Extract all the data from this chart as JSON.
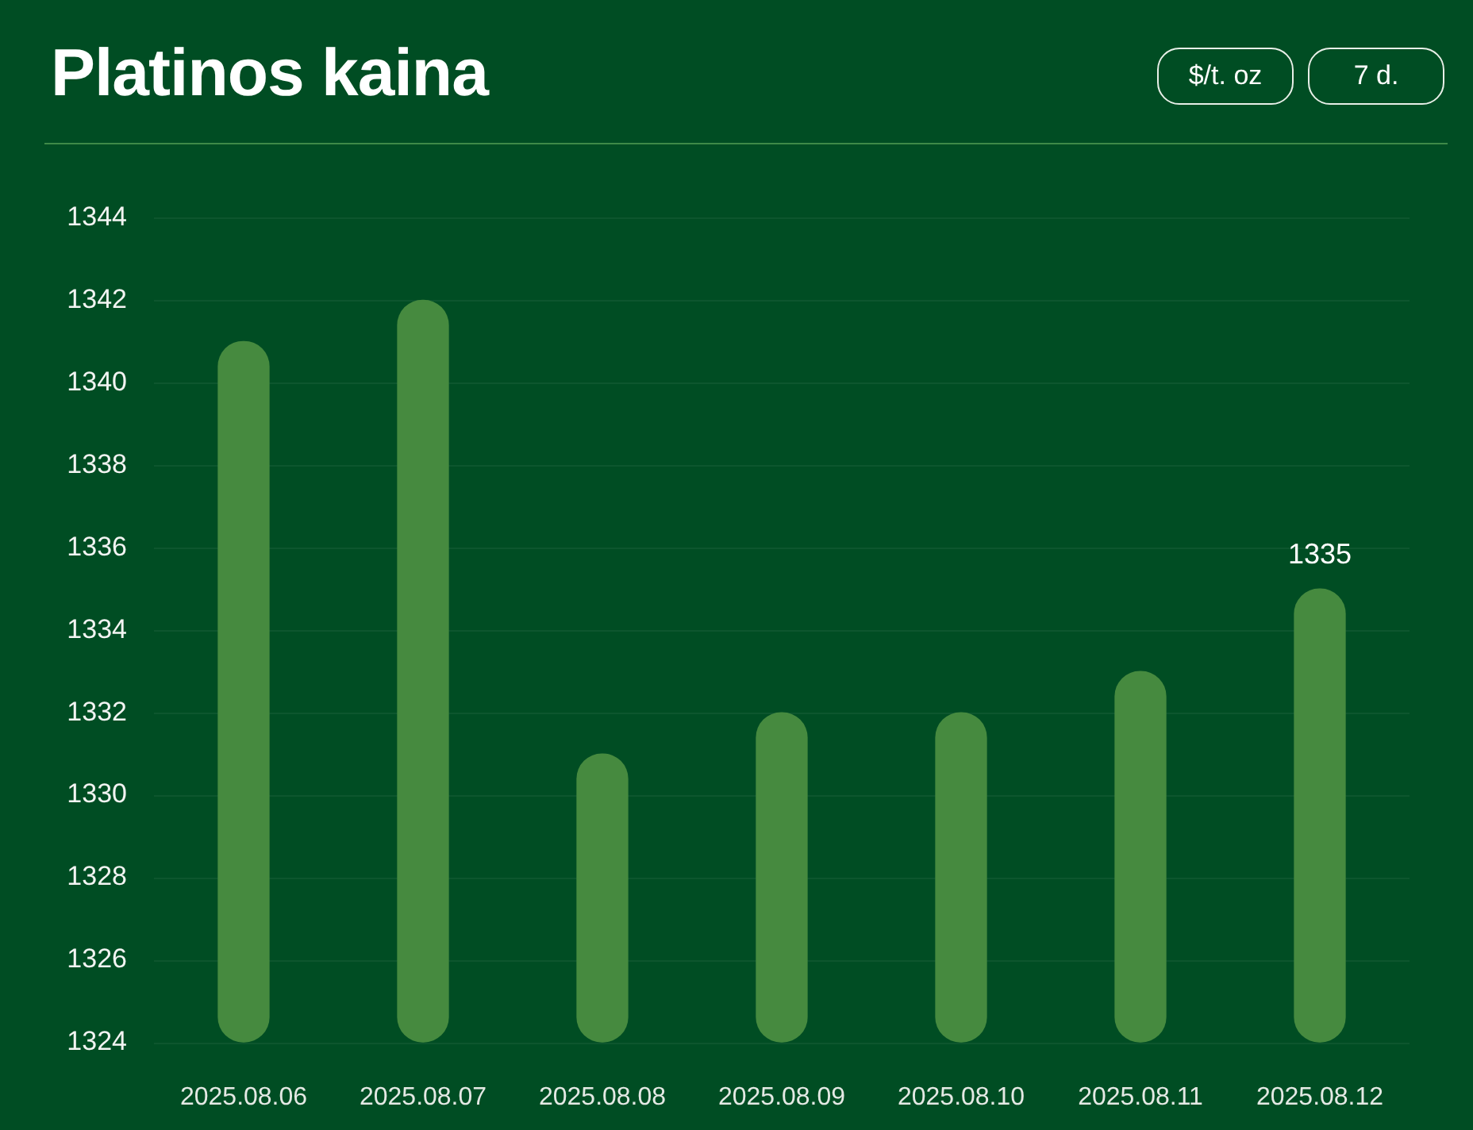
{
  "chart_data": {
    "type": "bar",
    "title": "Platinos kaina",
    "annotations": [
      "$/t. oz",
      "7 d."
    ],
    "categories": [
      "2025.08.06",
      "2025.08.07",
      "2025.08.08",
      "2025.08.09",
      "2025.08.10",
      "2025.08.11",
      "2025.08.12"
    ],
    "values": [
      1341,
      1342,
      1331,
      1332,
      1332,
      1333,
      1335
    ],
    "color": "#468a3f",
    "value_labels": [
      null,
      null,
      null,
      null,
      null,
      null,
      "1335"
    ],
    "ylim": [
      1324,
      1344
    ],
    "yticks": [
      1324,
      1326,
      1328,
      1330,
      1332,
      1334,
      1336,
      1338,
      1340,
      1342,
      1344
    ],
    "grid": "y",
    "legend": false
  }
}
